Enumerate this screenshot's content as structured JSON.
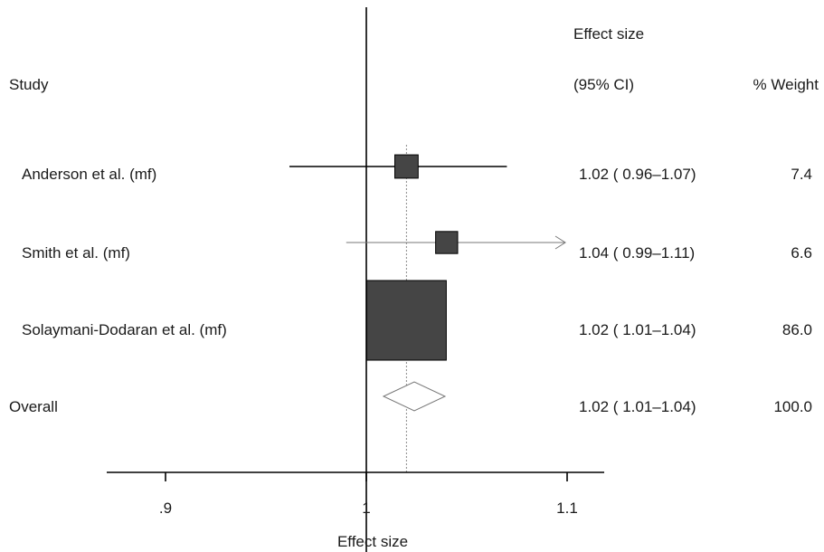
{
  "chart_data": {
    "type": "forest",
    "headers": {
      "study": "Study",
      "effect_line1": "Effect size",
      "effect_line2": "(95% CI)",
      "weight": "% Weight"
    },
    "studies": [
      {
        "label": "Anderson et al. (mf)",
        "estimate": 1.02,
        "ci": [
          0.96,
          1.07
        ],
        "ci_text": "1.02 ( 0.96–1.07)",
        "weight": 7.4,
        "weight_text": "7.4"
      },
      {
        "label": "Smith et al. (mf)",
        "estimate": 1.04,
        "ci": [
          0.99,
          1.11
        ],
        "ci_text": "1.04 ( 0.99–1.11)",
        "weight": 6.6,
        "weight_text": "6.6"
      },
      {
        "label": "Solaymani-Dodaran et al. (mf)",
        "estimate": 1.02,
        "ci": [
          1.01,
          1.04
        ],
        "ci_text": "1.02 ( 1.01–1.04)",
        "weight": 86.0,
        "weight_text": "86.0"
      }
    ],
    "overall": {
      "label": "Overall",
      "estimate": 1.02,
      "ci": [
        1.01,
        1.04
      ],
      "ci_text": "1.02 ( 1.01–1.04)",
      "weight": 100.0,
      "weight_text": "100.0"
    },
    "x_axis": {
      "label": "Effect size",
      "ticks": [
        0.9,
        1,
        1.1
      ],
      "tick_labels": [
        ".9",
        "1",
        "1.1"
      ],
      "range": [
        0.79,
        1.12
      ],
      "null_line": 1
    }
  }
}
